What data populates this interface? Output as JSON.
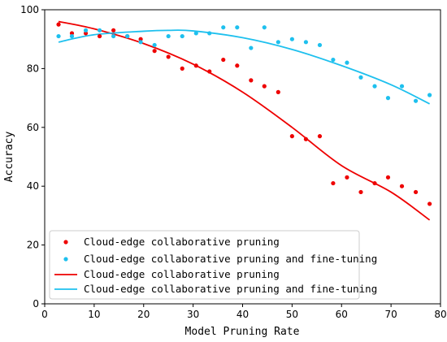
{
  "chart_data": {
    "type": "scatter",
    "xlabel": "Model Pruning Rate",
    "ylabel": "Accuracy",
    "xlim": [
      0,
      80
    ],
    "ylim": [
      0,
      100
    ],
    "xticks": [
      0,
      10,
      20,
      30,
      40,
      50,
      60,
      70,
      80
    ],
    "yticks": [
      0,
      20,
      40,
      60,
      80,
      100
    ],
    "grid": false,
    "legend_position": "lower-left",
    "series": [
      {
        "name": "Cloud-edge collaborative pruning",
        "kind": "scatter",
        "color": "#ee0000",
        "points": [
          [
            2.8,
            95
          ],
          [
            5.5,
            92
          ],
          [
            8.3,
            92
          ],
          [
            11.1,
            91
          ],
          [
            13.9,
            93
          ],
          [
            16.7,
            91
          ],
          [
            19.4,
            90
          ],
          [
            22.2,
            86
          ],
          [
            25,
            84
          ],
          [
            27.8,
            80
          ],
          [
            30.6,
            81
          ],
          [
            33.3,
            79
          ],
          [
            36.1,
            83
          ],
          [
            38.9,
            81
          ],
          [
            41.7,
            76
          ],
          [
            44.4,
            74
          ],
          [
            47.2,
            72
          ],
          [
            50,
            57
          ],
          [
            52.8,
            56
          ],
          [
            55.6,
            57
          ],
          [
            58.3,
            41
          ],
          [
            61.1,
            43
          ],
          [
            63.9,
            38
          ],
          [
            66.7,
            41
          ],
          [
            69.4,
            43
          ],
          [
            72.2,
            40
          ],
          [
            75,
            38
          ],
          [
            77.8,
            34
          ]
        ]
      },
      {
        "name": "Cloud-edge collaborative pruning and fine-tuning",
        "kind": "scatter",
        "color": "#1ec0ee",
        "points": [
          [
            2.8,
            91
          ],
          [
            5.5,
            91
          ],
          [
            8.3,
            93
          ],
          [
            11.1,
            93
          ],
          [
            13.9,
            91
          ],
          [
            16.7,
            91
          ],
          [
            19.4,
            89
          ],
          [
            22.2,
            88
          ],
          [
            25,
            91
          ],
          [
            27.8,
            91
          ],
          [
            30.6,
            92
          ],
          [
            33.3,
            92
          ],
          [
            36.1,
            94
          ],
          [
            38.9,
            94
          ],
          [
            41.7,
            87
          ],
          [
            44.4,
            94
          ],
          [
            47.2,
            89
          ],
          [
            50,
            90
          ],
          [
            52.8,
            89
          ],
          [
            55.6,
            88
          ],
          [
            58.3,
            83
          ],
          [
            61.1,
            82
          ],
          [
            63.9,
            77
          ],
          [
            66.7,
            74
          ],
          [
            69.4,
            70
          ],
          [
            72.2,
            74
          ],
          [
            75,
            69
          ],
          [
            77.8,
            71
          ]
        ]
      },
      {
        "name": "Cloud-edge collaborative pruning",
        "kind": "line",
        "color": "#ee0000",
        "points": [
          [
            2.8,
            96
          ],
          [
            10,
            93.5
          ],
          [
            20,
            88.5
          ],
          [
            30,
            81.5
          ],
          [
            40,
            72
          ],
          [
            50,
            60
          ],
          [
            60,
            47
          ],
          [
            70,
            38
          ],
          [
            77.8,
            28.5
          ]
        ]
      },
      {
        "name": "Cloud-edge collaborative pruning and fine-tuning",
        "kind": "line",
        "color": "#1ec0ee",
        "points": [
          [
            2.8,
            89
          ],
          [
            10,
            91.5
          ],
          [
            20,
            92.7
          ],
          [
            25,
            93
          ],
          [
            30,
            92.8
          ],
          [
            40,
            90.5
          ],
          [
            50,
            86.5
          ],
          [
            60,
            81
          ],
          [
            70,
            74.5
          ],
          [
            77.8,
            68
          ]
        ]
      }
    ]
  }
}
